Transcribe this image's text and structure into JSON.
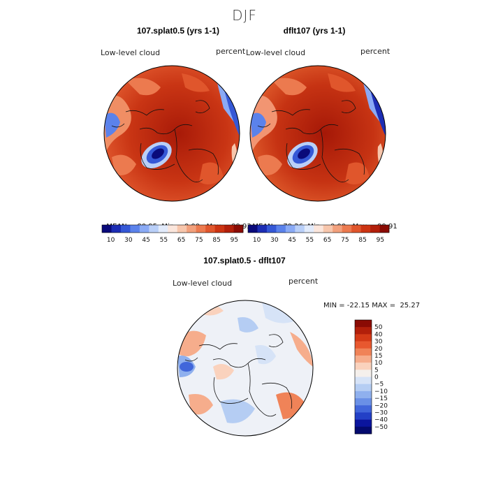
{
  "figure": {
    "season": "DJF"
  },
  "panels": [
    {
      "title": "107.splat0.5 (yrs 1-1)",
      "field": "Low-level cloud",
      "units": "percent",
      "stats": {
        "mean": "80.95",
        "min": "0.00",
        "max": "99.93"
      },
      "stats_labels": {
        "mean": "MEAN=",
        "min": "Min=",
        "max": "Max="
      }
    },
    {
      "title": "dflt107 (yrs 1-1)",
      "field": "Low-level cloud",
      "units": "percent",
      "stats": {
        "mean": "79.26",
        "min": "0.00",
        "max": "99.91"
      },
      "stats_labels": {
        "mean": "MEAN=",
        "min": "Min=",
        "max": "Max="
      }
    },
    {
      "title": "107.splat0.5 - dflt107",
      "field": "Low-level cloud",
      "units": "percent",
      "stats_text": "MIN = -22.15 MAX =  25.27"
    }
  ],
  "chart_data": [
    {
      "type": "heatmap",
      "projection": "north-polar-stereographic",
      "title": "107.splat0.5 (yrs 1-1)",
      "colorbar": {
        "orientation": "horizontal",
        "levels": [
          10,
          20,
          30,
          40,
          45,
          50,
          55,
          60,
          65,
          70,
          75,
          80,
          85,
          90,
          95
        ],
        "tick_labels": [
          "10",
          "30",
          "45",
          "55",
          "65",
          "75",
          "85",
          "95"
        ],
        "colors": [
          "#0a0a7a",
          "#1c2db4",
          "#3558d6",
          "#5b82eb",
          "#8aaaf5",
          "#b9cff8",
          "#e2ebfb",
          "#fbe6dc",
          "#f7c6ac",
          "#f2a07c",
          "#ec7a4f",
          "#e0562c",
          "#cc3412",
          "#b21f0a",
          "#8a0b04"
        ]
      },
      "stats": {
        "mean": 80.95,
        "min": 0.0,
        "max": 99.93
      }
    },
    {
      "type": "heatmap",
      "projection": "north-polar-stereographic",
      "title": "dflt107 (yrs 1-1)",
      "colorbar": {
        "orientation": "horizontal",
        "levels": [
          10,
          20,
          30,
          40,
          45,
          50,
          55,
          60,
          65,
          70,
          75,
          80,
          85,
          90,
          95
        ],
        "tick_labels": [
          "10",
          "30",
          "45",
          "55",
          "65",
          "75",
          "85",
          "95"
        ],
        "colors": [
          "#0a0a7a",
          "#1c2db4",
          "#3558d6",
          "#5b82eb",
          "#8aaaf5",
          "#b9cff8",
          "#e2ebfb",
          "#fbe6dc",
          "#f7c6ac",
          "#f2a07c",
          "#ec7a4f",
          "#e0562c",
          "#cc3412",
          "#b21f0a",
          "#8a0b04"
        ]
      },
      "stats": {
        "mean": 79.26,
        "min": 0.0,
        "max": 99.91
      }
    },
    {
      "type": "heatmap",
      "projection": "north-polar-stereographic",
      "title": "107.splat0.5 - dflt107",
      "colorbar": {
        "orientation": "vertical",
        "tick_labels": [
          "50",
          "40",
          "30",
          "20",
          "15",
          "10",
          "5",
          "0",
          "−5",
          "−10",
          "−15",
          "−20",
          "−30",
          "−40",
          "−50"
        ],
        "colors": [
          "#8a0b04",
          "#b21f0a",
          "#d43a17",
          "#e8582f",
          "#f08358",
          "#f6ad8c",
          "#fad2bd",
          "#f5f0ec",
          "#d6e3f7",
          "#b5cdf3",
          "#8fb0ee",
          "#6a90e6",
          "#4166da",
          "#2340c6",
          "#0b159e",
          "#040a6e"
        ]
      },
      "stats": {
        "min": -22.15,
        "max": 25.27
      }
    }
  ]
}
